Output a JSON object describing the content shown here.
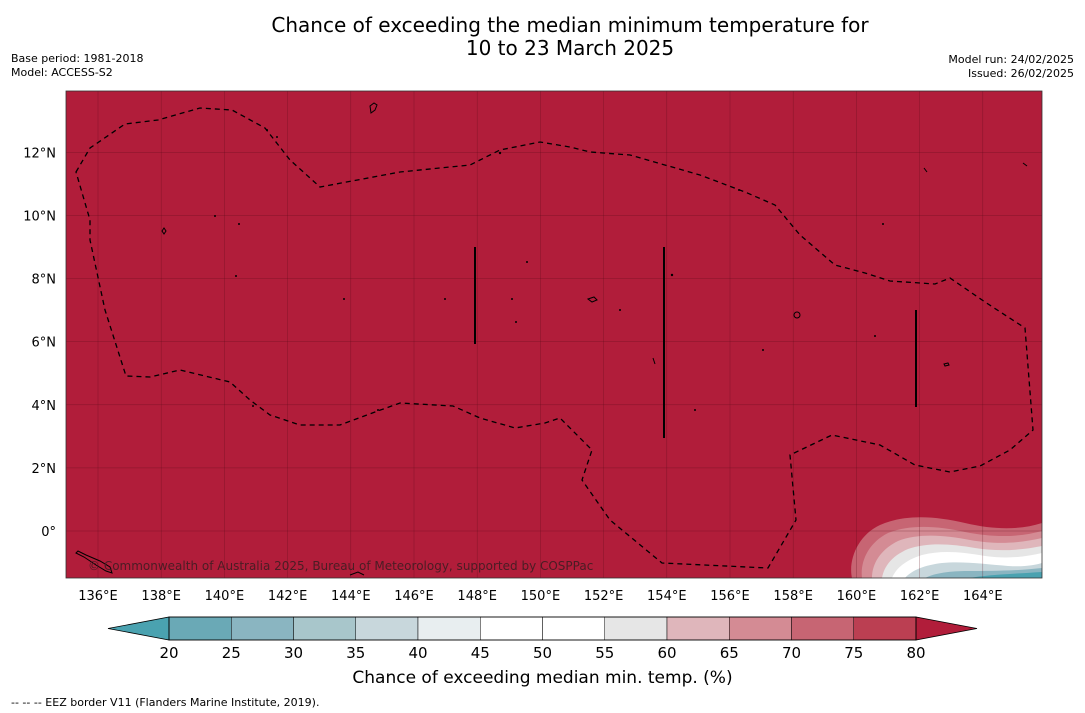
{
  "title_line1": "Chance of exceeding the median minimum temperature for",
  "title_line2": "10 to 23 March 2025",
  "base_period": "Base period: 1981-2018",
  "model": "Model: ACCESS-S2",
  "model_run": "Model run: 24/02/2025",
  "issued": "Issued: 26/02/2025",
  "copyright": "© Commonwealth of Australia 2025, Bureau of Meteorology, supported by COSPPac",
  "colorbar_label": "Chance of exceeding median min. temp. (%)",
  "footnote": "--  --  -- EEZ border V11 (Flanders Marine Institute, 2019).",
  "map": {
    "lat_labels": [
      "12°N",
      "10°N",
      "8°N",
      "6°N",
      "4°N",
      "2°N",
      "0°"
    ],
    "lon_labels": [
      "136°E",
      "138°E",
      "140°E",
      "142°E",
      "144°E",
      "146°E",
      "148°E",
      "150°E",
      "152°E",
      "154°E",
      "156°E",
      "158°E",
      "160°E",
      "162°E",
      "164°E"
    ],
    "dominant_category": "80+",
    "dominant_color": "#b11d3a"
  },
  "colorbar": {
    "ticks": [
      "20",
      "25",
      "30",
      "35",
      "40",
      "45",
      "50",
      "55",
      "60",
      "65",
      "70",
      "75",
      "80"
    ],
    "colors": [
      "#6aa9b6",
      "#8ab5c1",
      "#a8c6cb",
      "#c8d7dc",
      "#e8eef0",
      "#ffffff",
      "#ffffff",
      "#e6e6e6",
      "#dfb6bb",
      "#d48b94",
      "#c76573",
      "#bb3f52"
    ],
    "low_color": "#4aa2b0",
    "high_color": "#b11d3a"
  }
}
